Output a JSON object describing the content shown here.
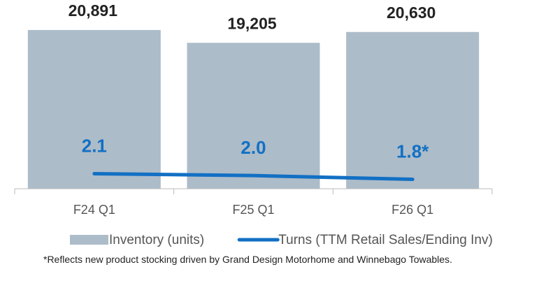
{
  "chart_data": {
    "type": "bar",
    "categories": [
      "F24 Q1",
      "F25 Q1",
      "F26 Q1"
    ],
    "series": [
      {
        "name": "Inventory (units)",
        "type": "bar",
        "color": "#adbcc9",
        "values": [
          20891,
          19205,
          20630
        ],
        "value_labels": [
          "20,891",
          "19,205",
          "20,630"
        ]
      },
      {
        "name": "Turns (TTM Retail Sales/Ending Inv)",
        "type": "line",
        "axis": "y2",
        "color": "#1270c4",
        "values": [
          2.1,
          2.0,
          1.8
        ],
        "value_labels": [
          "2.1",
          "2.0",
          "1.8*"
        ]
      }
    ],
    "ylim": [
      0,
      23000
    ],
    "y2lim": [
      1.3,
      10.6
    ],
    "legend": "bottom",
    "footnote": "*Reflects new product stocking driven by Grand Design Motorhome and Winnebago Towables."
  }
}
